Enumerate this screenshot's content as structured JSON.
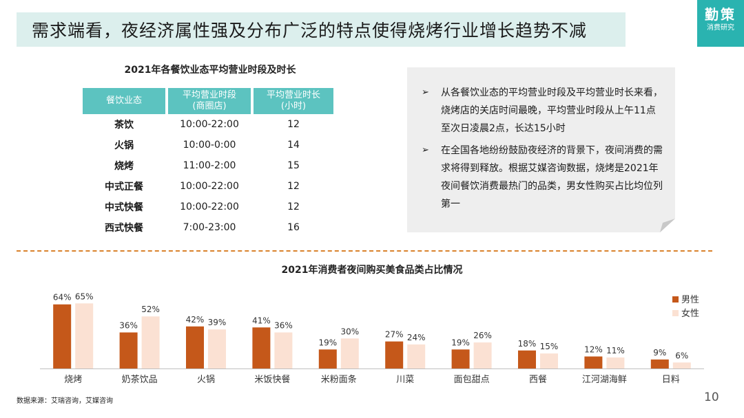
{
  "header": {
    "title": "需求端看，夜经济属性强及分布广泛的特点使得烧烤行业增长趋势不减",
    "brand_main": "勤策",
    "brand_sub": "消费研究"
  },
  "table": {
    "title": "2021年各餐饮业态平均营业时段及时长",
    "headers": [
      {
        "line1": "餐饮业态",
        "line2": ""
      },
      {
        "line1": "平均营业时段",
        "line2": "(商圈店)"
      },
      {
        "line1": "平均营业时长",
        "line2": "(小时)"
      }
    ],
    "rows": [
      [
        "茶饮",
        "10:00-22:00",
        "12"
      ],
      [
        "火锅",
        "10:00-0:00",
        "14"
      ],
      [
        "烧烤",
        "11:00-2:00",
        "15"
      ],
      [
        "中式正餐",
        "10:00-22:00",
        "12"
      ],
      [
        "中式快餐",
        "10:00-22:00",
        "12"
      ],
      [
        "西式快餐",
        "7:00-23:00",
        "16"
      ]
    ]
  },
  "notes": {
    "arrow": "➢",
    "items": [
      "从各餐饮业态的平均营业时段及平均营业时长来看，烧烤店的关店时间最晚，平均营业时段从上午11点至次日凌晨2点，长达15小时",
      "在全国各地纷纷鼓励夜经济的背景下，夜间消费的需求将得到释放。根据艾媒咨询数据，烧烤是2021年夜间餐饮消费最热门的品类，男女性购买占比均位列第一"
    ]
  },
  "chart_data": {
    "type": "bar",
    "title": "2021年消费者夜间购买美食品类占比情况",
    "categories": [
      "烧烤",
      "奶茶饮品",
      "火锅",
      "米饭快餐",
      "米粉面条",
      "川菜",
      "面包甜点",
      "西餐",
      "江河湖海鲜",
      "日料"
    ],
    "series": [
      {
        "name": "男性",
        "color": "#c5581a",
        "values": [
          64,
          36,
          42,
          41,
          19,
          27,
          19,
          18,
          12,
          9
        ]
      },
      {
        "name": "女性",
        "color": "#fbe1d3",
        "values": [
          65,
          52,
          39,
          36,
          30,
          24,
          26,
          15,
          11,
          6
        ]
      }
    ],
    "unit": "%",
    "ylim": [
      0,
      70
    ],
    "grid": false,
    "legend_position": "right"
  },
  "footer": {
    "source": "数据来源：艾瑞咨询，艾媒咨询",
    "page": "10"
  }
}
